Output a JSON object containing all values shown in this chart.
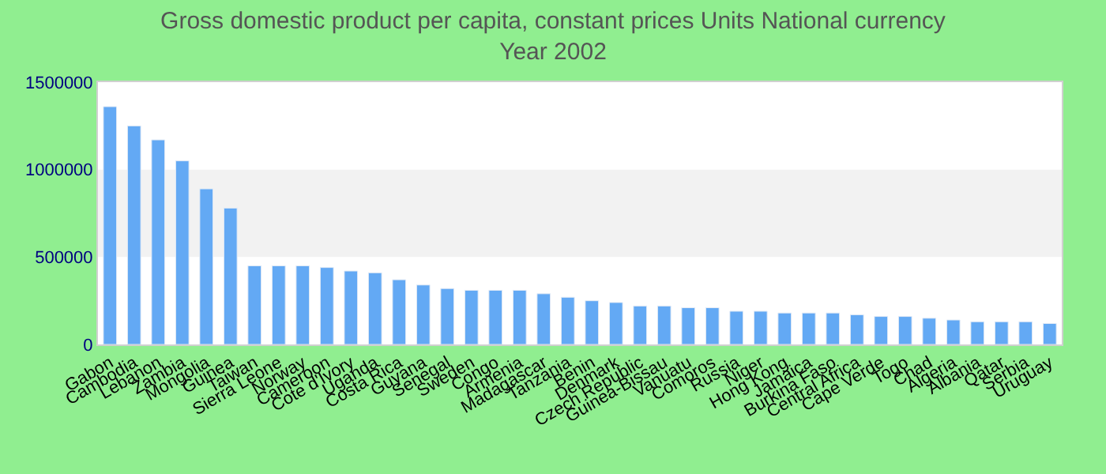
{
  "chart_data": {
    "type": "bar",
    "title": "Gross domestic product per capita, constant prices Units National currency",
    "subtitle": "Year 2002",
    "categories": [
      "Gabon",
      "Cambodia",
      "Lebanon",
      "Zambia",
      "Mongolia",
      "Guinea",
      "Taiwan",
      "Sierra Leone",
      "Norway",
      "Cameroon",
      "Cote d'Ivory",
      "Uganda",
      "Costa Rica",
      "Guyana",
      "Senegal",
      "Sweden",
      "Congo",
      "Armenia",
      "Madagascar",
      "Tanzania",
      "Benin",
      "Denmark",
      "Czech Republic",
      "Guinea-Bissau",
      "Vanuatu",
      "Comoros",
      "Russia",
      "Niger",
      "Hong Kong",
      "Jamaica",
      "Burkina Faso",
      "Central Africa",
      "Cape Verde",
      "Togo",
      "Chad",
      "Algeria",
      "Albania",
      "Qatar",
      "Serbia",
      "Uruguay"
    ],
    "values": [
      1360000,
      1250000,
      1170000,
      1050000,
      890000,
      780000,
      450000,
      450000,
      450000,
      440000,
      420000,
      410000,
      370000,
      340000,
      320000,
      310000,
      310000,
      310000,
      290000,
      270000,
      250000,
      240000,
      220000,
      220000,
      210000,
      210000,
      190000,
      190000,
      180000,
      180000,
      180000,
      170000,
      160000,
      160000,
      150000,
      140000,
      130000,
      130000,
      130000,
      120000
    ],
    "color": "#63a9f4",
    "ylim": [
      0,
      1500000
    ],
    "yticks": [
      0,
      500000,
      1000000,
      1500000
    ],
    "bands": [
      {
        "axis": "y",
        "from": 500000,
        "to": 1000000,
        "color": "#f2f2f2"
      }
    ],
    "grid": false,
    "legend": false
  }
}
